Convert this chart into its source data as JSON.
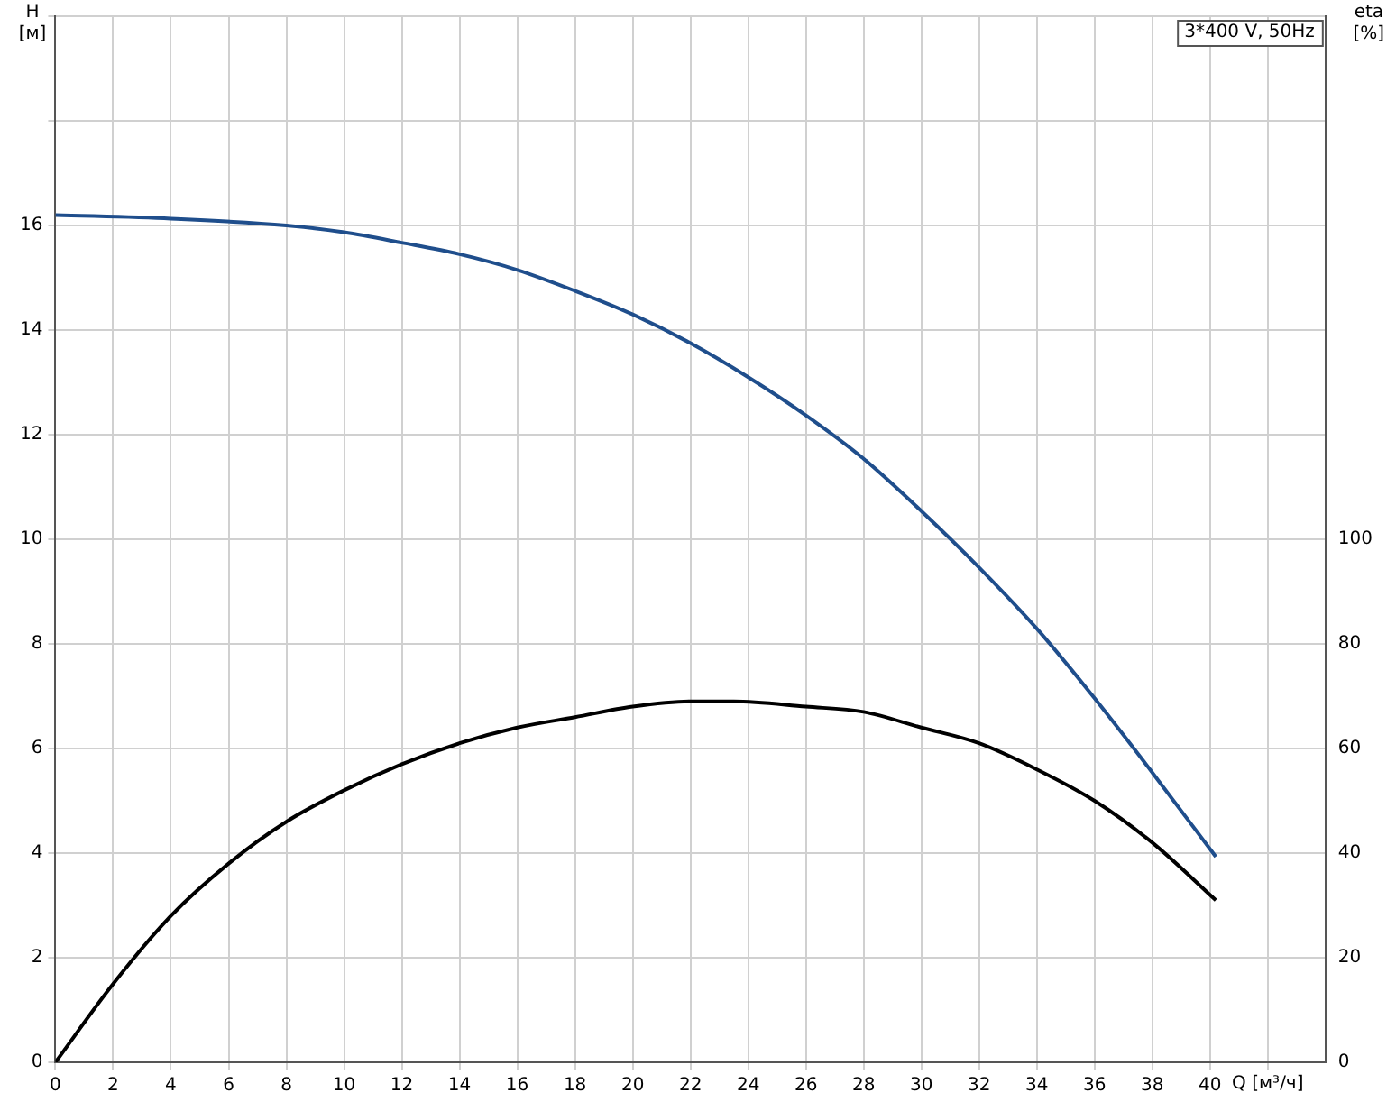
{
  "chart_data": {
    "type": "line",
    "xlabel": "Q [м³/ч]",
    "ylabel": "H\n[м]",
    "y2label": "eta\n[%]",
    "annotations": [
      "3*400 V, 50Hz"
    ],
    "xlim": [
      0,
      44
    ],
    "xticks": [
      0,
      2,
      4,
      6,
      8,
      10,
      12,
      14,
      16,
      18,
      20,
      22,
      24,
      26,
      28,
      30,
      32,
      34,
      36,
      38,
      40,
      {
        "value": 42,
        "label": null
      }
    ],
    "ylim": [
      0,
      20
    ],
    "yticks": [
      0,
      2,
      4,
      6,
      8,
      10,
      12,
      14,
      16,
      {
        "value": 18,
        "label": null
      },
      {
        "value": 20,
        "label": null
      }
    ],
    "y2lim": [
      0,
      200
    ],
    "y2ticks": [
      0,
      20,
      40,
      60,
      80,
      100
    ],
    "grid": true,
    "legend": false,
    "marker": "none",
    "line_style": "solid",
    "series": [
      {
        "color": "#1f4e8c",
        "x": [
          0,
          4,
          8,
          10,
          12,
          14,
          16,
          18,
          20,
          22,
          24,
          26,
          28,
          30,
          32,
          34,
          36,
          38,
          40.2
        ],
        "values": [
          16.2,
          16.13,
          16.0,
          15.87,
          15.67,
          15.45,
          15.15,
          14.75,
          14.3,
          13.75,
          13.1,
          12.37,
          11.54,
          10.54,
          9.46,
          8.29,
          6.96,
          5.54,
          3.93
        ]
      },
      {
        "color": "#000000",
        "axis": "y2",
        "x": [
          0,
          2,
          4,
          6,
          8,
          10,
          12,
          14,
          16,
          18,
          20,
          22,
          23.5,
          26,
          28,
          30,
          32,
          34,
          36,
          38,
          40.2
        ],
        "values": [
          0,
          15,
          28,
          38,
          46,
          52,
          57,
          61,
          64,
          66,
          68,
          69,
          69,
          68,
          67,
          64,
          61,
          56,
          50,
          42,
          31
        ]
      }
    ]
  }
}
